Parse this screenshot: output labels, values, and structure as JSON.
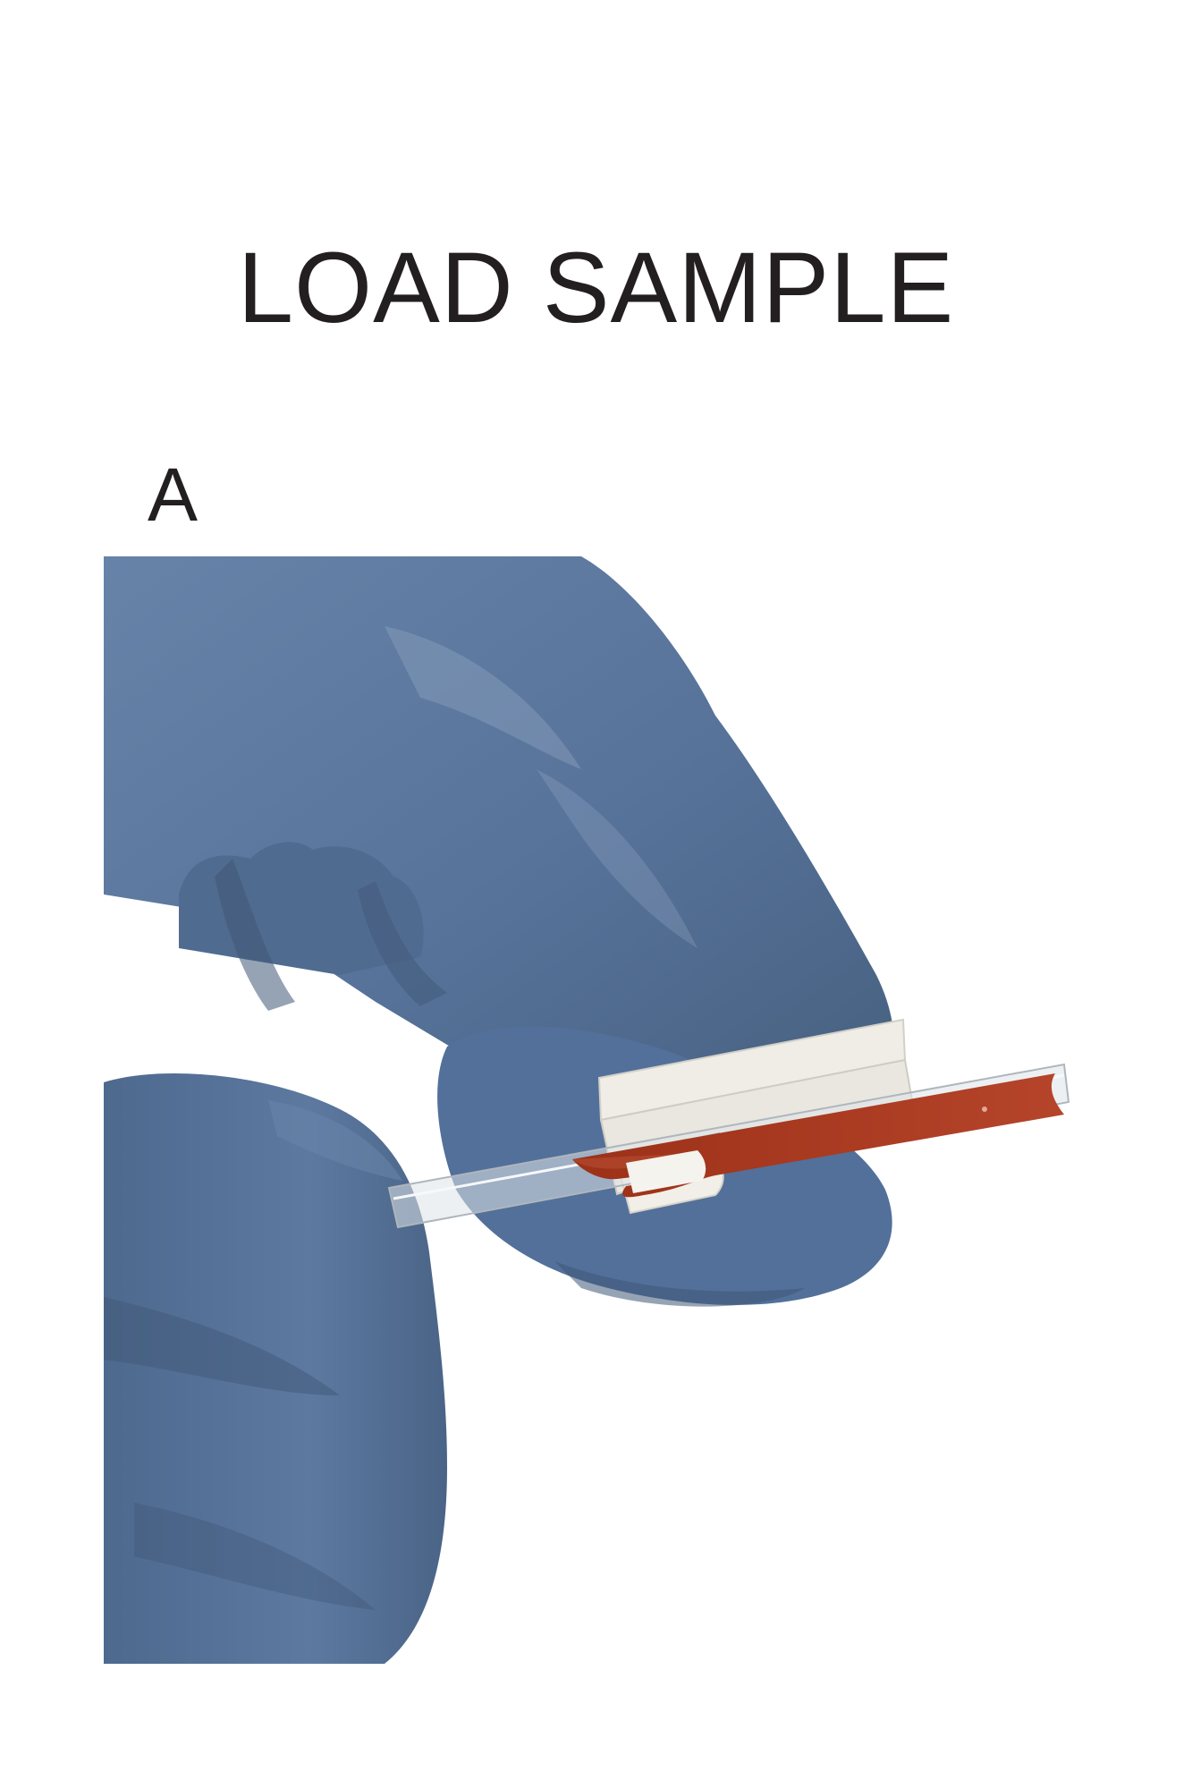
{
  "figure": {
    "title": "LOAD SAMPLE",
    "panel_label": "A"
  },
  "photo": {
    "subject": "gloved-hand-holding-sample-slide",
    "colors": {
      "glove": "#5a7599",
      "glove_shadow": "#3f5877",
      "glove_highlight": "#7f96b5",
      "holder": "#eeece4",
      "sample": "#a8391f",
      "glass": "#c9d0d6"
    }
  }
}
